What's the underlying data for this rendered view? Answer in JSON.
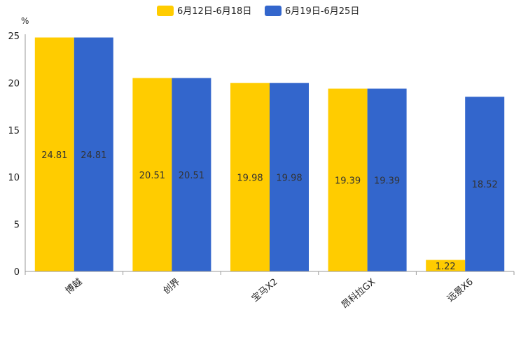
{
  "chart_data": {
    "type": "bar",
    "title": "",
    "xlabel": "",
    "ylabel": "%",
    "ylim": [
      0,
      25
    ],
    "yticks": [
      0,
      5,
      10,
      15,
      20,
      25
    ],
    "grid": false,
    "legend_position": "top-center",
    "categories": [
      "博越",
      "创界",
      "宝马X2",
      "昂科拉GX",
      "远景X6"
    ],
    "series": [
      {
        "name": "6月12日-6月18日",
        "color": "#FFCC00",
        "values": [
          24.81,
          20.51,
          19.98,
          19.39,
          1.22
        ],
        "labels": [
          "24.81",
          "20.51",
          "19.98",
          "19.39",
          "1.22"
        ]
      },
      {
        "name": "6月19日-6月25日",
        "color": "#3366CC",
        "values": [
          24.81,
          20.51,
          19.98,
          19.39,
          18.52
        ],
        "labels": [
          "24.81",
          "20.51",
          "19.98",
          "19.39",
          "18.52"
        ]
      }
    ]
  }
}
